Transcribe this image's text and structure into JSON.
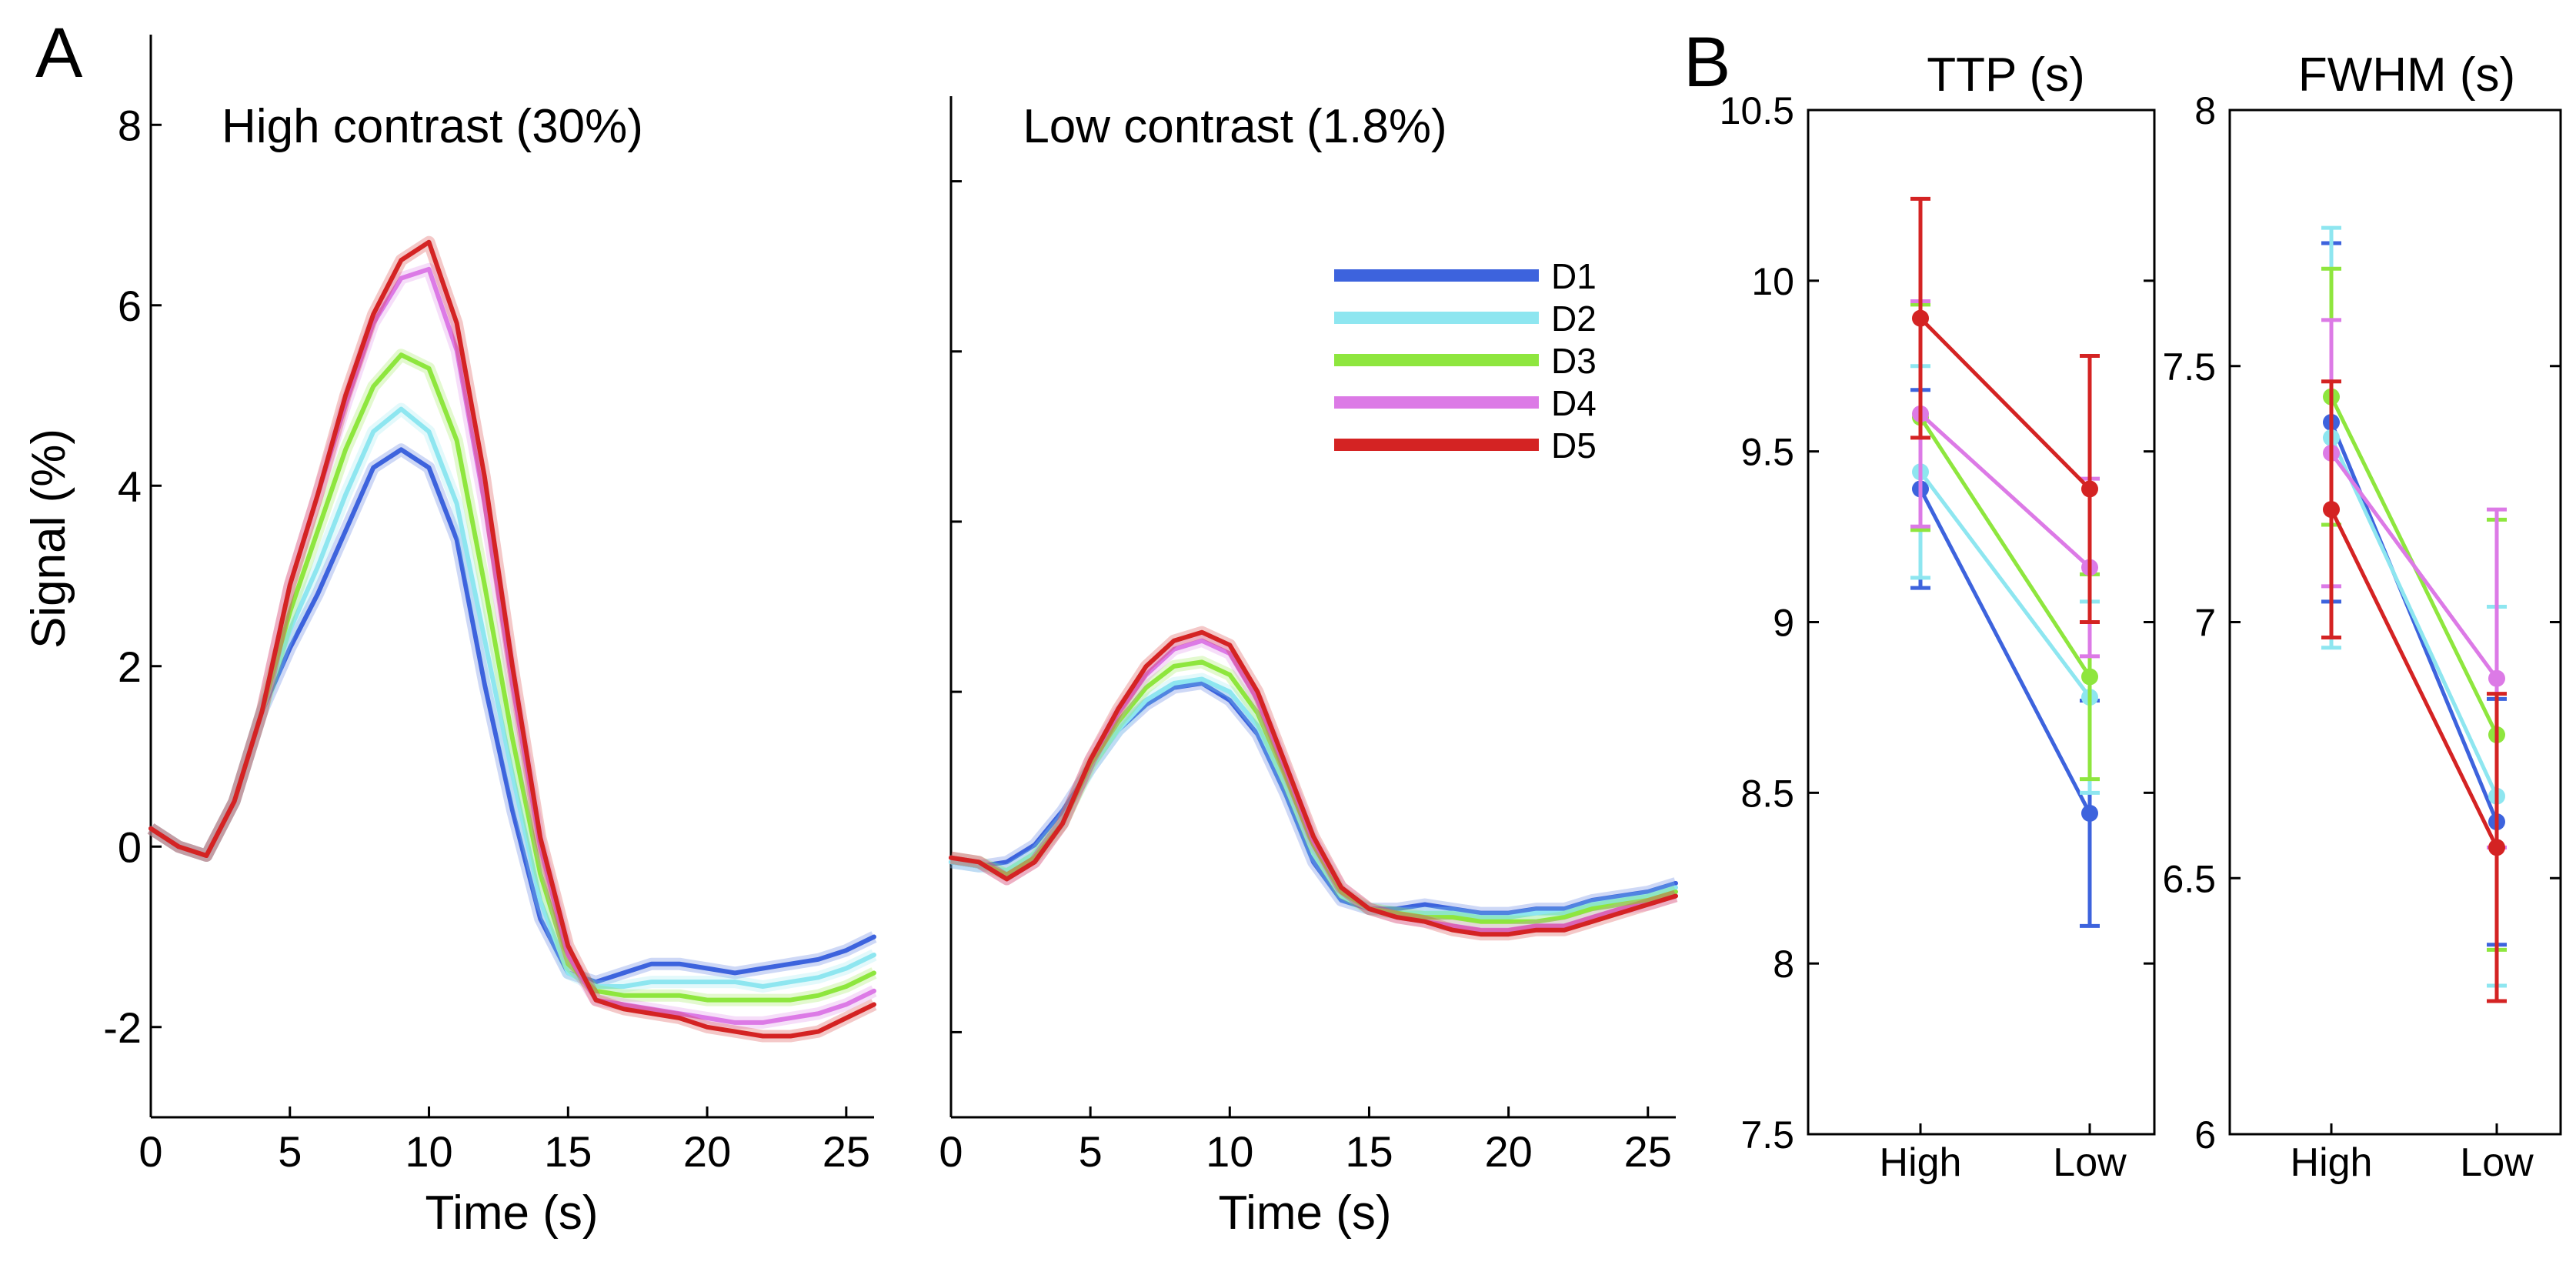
{
  "panel_labels": {
    "a": "A",
    "b": "B"
  },
  "colors": {
    "D1": "#3d63dd",
    "D2": "#8ee6f0",
    "D3": "#8ee63e",
    "D4": "#dc7ae6",
    "D5": "#d42323"
  },
  "chart_data": [
    {
      "type": "line",
      "title": "High contrast (30%)",
      "xlabel": "Time (s)",
      "ylabel": "Signal (%)",
      "xlim": [
        0,
        26
      ],
      "ylim": [
        -3,
        9
      ],
      "xticks": [
        0,
        5,
        10,
        15,
        20,
        25
      ],
      "yticks": [
        -2,
        0,
        2,
        4,
        6,
        8
      ],
      "x": [
        0,
        1,
        2,
        3,
        4,
        5,
        6,
        7,
        8,
        9,
        10,
        11,
        12,
        13,
        14,
        15,
        16,
        17,
        18,
        19,
        20,
        21,
        22,
        23,
        24,
        25,
        26
      ],
      "series": [
        {
          "name": "D1",
          "values": [
            0.2,
            0,
            -0.1,
            0.5,
            1.5,
            2.2,
            2.8,
            3.5,
            4.2,
            4.4,
            4.2,
            3.4,
            1.8,
            0.4,
            -0.8,
            -1.4,
            -1.5,
            -1.4,
            -1.3,
            -1.3,
            -1.35,
            -1.4,
            -1.35,
            -1.3,
            -1.25,
            -1.15,
            -1.0
          ]
        },
        {
          "name": "D2",
          "values": [
            0.2,
            0,
            -0.1,
            0.5,
            1.5,
            2.4,
            3.1,
            3.9,
            4.6,
            4.85,
            4.6,
            3.8,
            2.3,
            0.8,
            -0.6,
            -1.4,
            -1.55,
            -1.55,
            -1.5,
            -1.5,
            -1.5,
            -1.5,
            -1.55,
            -1.5,
            -1.45,
            -1.35,
            -1.2
          ]
        },
        {
          "name": "D3",
          "values": [
            0.2,
            0,
            -0.1,
            0.5,
            1.5,
            2.6,
            3.5,
            4.4,
            5.1,
            5.45,
            5.3,
            4.5,
            2.9,
            1.2,
            -0.3,
            -1.3,
            -1.6,
            -1.65,
            -1.65,
            -1.65,
            -1.7,
            -1.7,
            -1.7,
            -1.7,
            -1.65,
            -1.55,
            -1.4
          ]
        },
        {
          "name": "D4",
          "values": [
            0.2,
            0,
            -0.1,
            0.5,
            1.5,
            2.9,
            3.9,
            4.9,
            5.8,
            6.3,
            6.4,
            5.5,
            3.8,
            1.8,
            0.0,
            -1.2,
            -1.7,
            -1.75,
            -1.8,
            -1.85,
            -1.9,
            -1.95,
            -1.95,
            -1.9,
            -1.85,
            -1.75,
            -1.6
          ]
        },
        {
          "name": "D5",
          "values": [
            0.2,
            0,
            -0.1,
            0.5,
            1.5,
            2.9,
            3.9,
            5.0,
            5.9,
            6.5,
            6.7,
            5.8,
            4.1,
            2.0,
            0.1,
            -1.1,
            -1.7,
            -1.8,
            -1.85,
            -1.9,
            -2.0,
            -2.05,
            -2.1,
            -2.1,
            -2.05,
            -1.9,
            -1.75
          ]
        }
      ]
    },
    {
      "type": "line",
      "title": "Low contrast (1.8%)",
      "xlabel": "Time (s)",
      "ylabel": "",
      "xlim": [
        0,
        26
      ],
      "ylim": [
        -3,
        9
      ],
      "xticks": [
        0,
        5,
        10,
        15,
        20,
        25
      ],
      "yticks": [
        -2,
        0,
        2,
        4,
        6,
        8
      ],
      "x": [
        0,
        1,
        2,
        3,
        4,
        5,
        6,
        7,
        8,
        9,
        10,
        11,
        12,
        13,
        14,
        15,
        16,
        17,
        18,
        19,
        20,
        21,
        22,
        23,
        24,
        25,
        26
      ],
      "series": [
        {
          "name": "D1",
          "values": [
            0.0,
            -0.05,
            0.0,
            0.2,
            0.6,
            1.1,
            1.55,
            1.85,
            2.05,
            2.1,
            1.9,
            1.5,
            0.8,
            0.0,
            -0.45,
            -0.55,
            -0.55,
            -0.5,
            -0.55,
            -0.6,
            -0.6,
            -0.55,
            -0.55,
            -0.45,
            -0.4,
            -0.35,
            -0.25
          ]
        },
        {
          "name": "D2",
          "values": [
            0.0,
            -0.05,
            -0.1,
            0.1,
            0.5,
            1.1,
            1.55,
            1.9,
            2.1,
            2.15,
            2.0,
            1.6,
            0.9,
            0.1,
            -0.4,
            -0.55,
            -0.6,
            -0.6,
            -0.6,
            -0.65,
            -0.65,
            -0.6,
            -0.6,
            -0.5,
            -0.45,
            -0.4,
            -0.3
          ]
        },
        {
          "name": "D3",
          "values": [
            0.05,
            0.0,
            -0.15,
            0.05,
            0.45,
            1.15,
            1.65,
            2.05,
            2.3,
            2.35,
            2.2,
            1.75,
            1.0,
            0.2,
            -0.35,
            -0.55,
            -0.6,
            -0.65,
            -0.65,
            -0.7,
            -0.7,
            -0.7,
            -0.65,
            -0.55,
            -0.5,
            -0.45,
            -0.35
          ]
        },
        {
          "name": "D4",
          "values": [
            0.05,
            0.0,
            -0.2,
            0.0,
            0.45,
            1.2,
            1.75,
            2.2,
            2.5,
            2.6,
            2.45,
            1.9,
            1.1,
            0.25,
            -0.3,
            -0.55,
            -0.65,
            -0.7,
            -0.75,
            -0.8,
            -0.8,
            -0.75,
            -0.75,
            -0.65,
            -0.55,
            -0.5,
            -0.4
          ]
        },
        {
          "name": "D5",
          "values": [
            0.05,
            0.0,
            -0.2,
            0.0,
            0.45,
            1.2,
            1.8,
            2.3,
            2.6,
            2.7,
            2.55,
            2.0,
            1.15,
            0.3,
            -0.3,
            -0.55,
            -0.65,
            -0.7,
            -0.8,
            -0.85,
            -0.85,
            -0.8,
            -0.8,
            -0.7,
            -0.6,
            -0.5,
            -0.4
          ]
        }
      ]
    },
    {
      "type": "line",
      "title": "TTP (s)",
      "categories": [
        "High",
        "Low"
      ],
      "ylim": [
        7.5,
        10.5
      ],
      "yticks": [
        7.5,
        8,
        8.5,
        9,
        9.5,
        10,
        10.5
      ],
      "ytick_labels": [
        "7.5",
        "8",
        "8.5",
        "9",
        "9.5",
        "10",
        "10.5"
      ],
      "series": [
        {
          "name": "D1",
          "values": [
            9.39,
            8.44
          ],
          "errors": [
            0.29,
            0.33
          ]
        },
        {
          "name": "D2",
          "values": [
            9.44,
            8.78
          ],
          "errors": [
            0.31,
            0.28
          ]
        },
        {
          "name": "D3",
          "values": [
            9.6,
            8.84
          ],
          "errors": [
            0.33,
            0.3
          ]
        },
        {
          "name": "D4",
          "values": [
            9.61,
            9.16
          ],
          "errors": [
            0.33,
            0.26
          ]
        },
        {
          "name": "D5",
          "values": [
            9.89,
            9.39
          ],
          "errors": [
            0.35,
            0.39
          ]
        }
      ]
    },
    {
      "type": "line",
      "title": "FWHM (s)",
      "categories": [
        "High",
        "Low"
      ],
      "ylim": [
        6,
        8
      ],
      "yticks": [
        6,
        6.5,
        7,
        7.5,
        8
      ],
      "ytick_labels": [
        "6",
        "6.5",
        "7",
        "7.5",
        "8"
      ],
      "series": [
        {
          "name": "D1",
          "values": [
            7.39,
            6.61
          ],
          "errors": [
            0.35,
            0.24
          ]
        },
        {
          "name": "D2",
          "values": [
            7.36,
            6.66
          ],
          "errors": [
            0.41,
            0.37
          ]
        },
        {
          "name": "D3",
          "values": [
            7.44,
            6.78
          ],
          "errors": [
            0.25,
            0.42
          ]
        },
        {
          "name": "D4",
          "values": [
            7.33,
            6.89
          ],
          "errors": [
            0.26,
            0.33
          ]
        },
        {
          "name": "D5",
          "values": [
            7.22,
            6.56
          ],
          "errors": [
            0.25,
            0.3
          ]
        }
      ]
    }
  ]
}
